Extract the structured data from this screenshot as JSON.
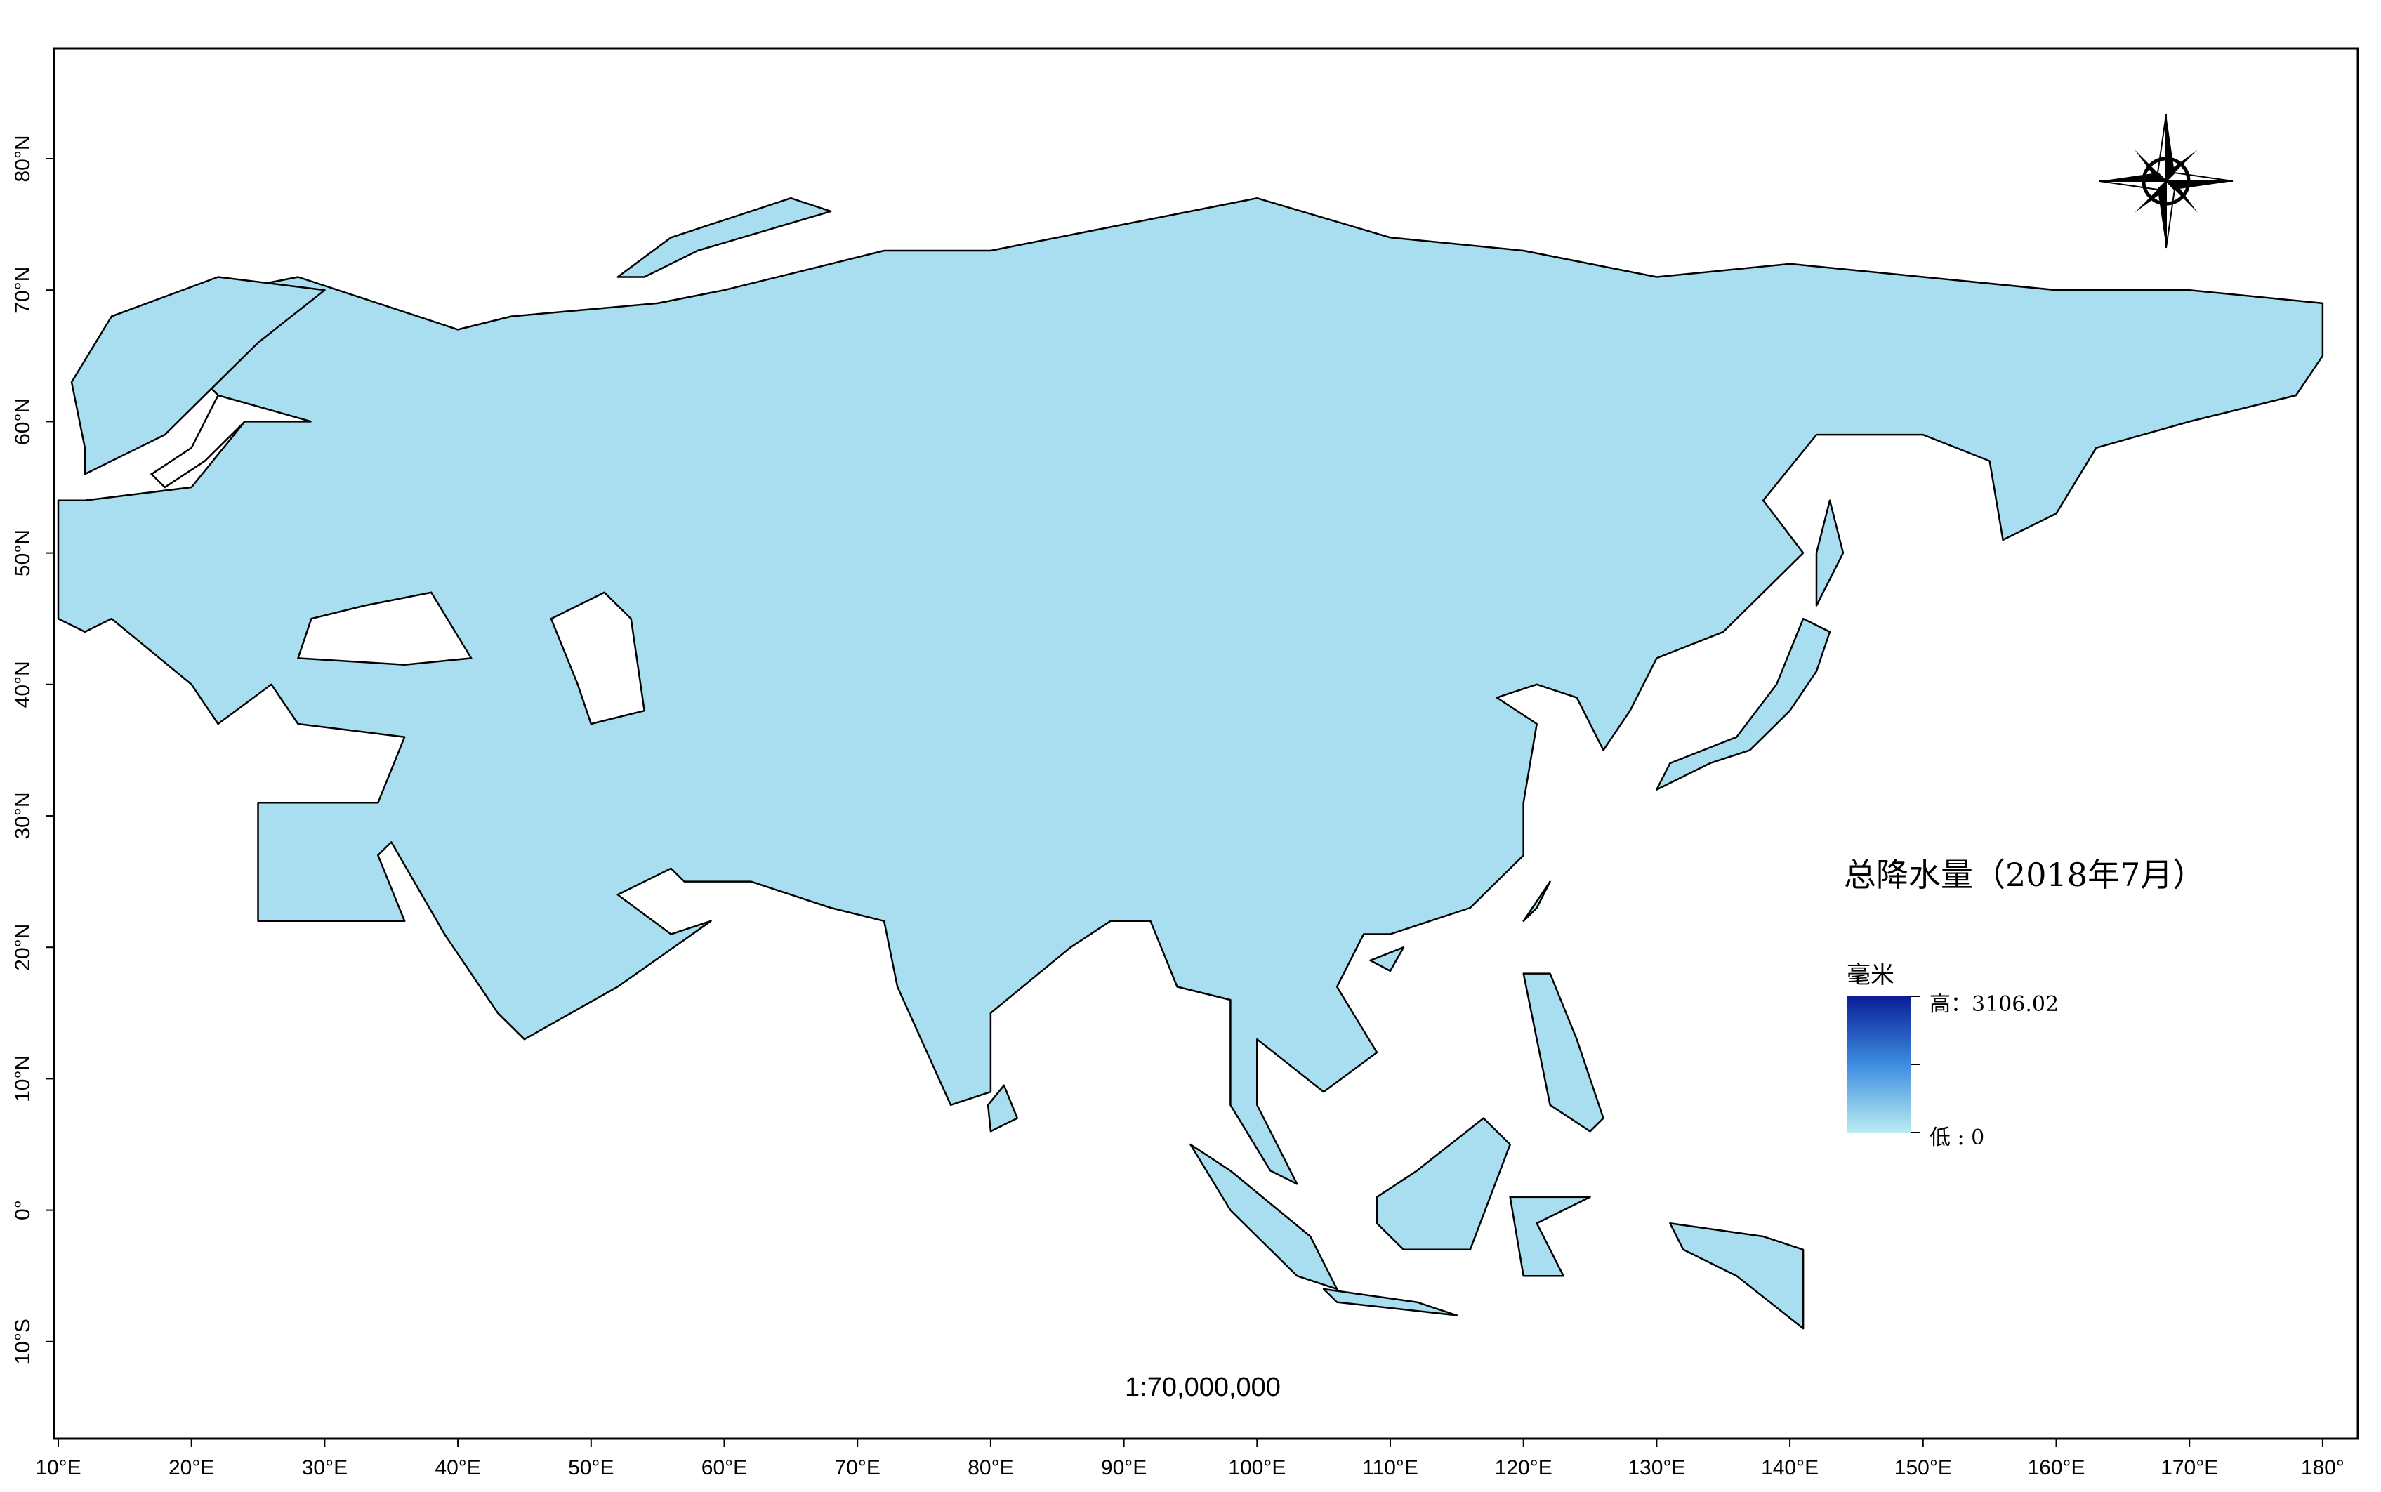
{
  "map": {
    "title": "总降水量（2018年7月）",
    "scale": "1:70,000,000",
    "legend": {
      "title": "毫米",
      "high": "高：3106.02",
      "low": "低 : 0"
    },
    "xticks": [
      {
        "value": 10,
        "label": "10°E"
      },
      {
        "value": 20,
        "label": "20°E"
      },
      {
        "value": 30,
        "label": "30°E"
      },
      {
        "value": 40,
        "label": "40°E"
      },
      {
        "value": 50,
        "label": "50°E"
      },
      {
        "value": 60,
        "label": "60°E"
      },
      {
        "value": 70,
        "label": "70°E"
      },
      {
        "value": 80,
        "label": "80°E"
      },
      {
        "value": 90,
        "label": "90°E"
      },
      {
        "value": 100,
        "label": "100°E"
      },
      {
        "value": 110,
        "label": "110°E"
      },
      {
        "value": 120,
        "label": "120°E"
      },
      {
        "value": 130,
        "label": "130°E"
      },
      {
        "value": 140,
        "label": "140°E"
      },
      {
        "value": 150,
        "label": "150°E"
      },
      {
        "value": 160,
        "label": "160°E"
      },
      {
        "value": 170,
        "label": "170°E"
      },
      {
        "value": 180,
        "label": "180°"
      }
    ],
    "yticks": [
      {
        "value": 80,
        "label": "80°N"
      },
      {
        "value": 70,
        "label": "70°N"
      },
      {
        "value": 60,
        "label": "60°N"
      },
      {
        "value": 50,
        "label": "50°N"
      },
      {
        "value": 40,
        "label": "40°N"
      },
      {
        "value": 30,
        "label": "30°N"
      },
      {
        "value": 20,
        "label": "20°N"
      },
      {
        "value": 10,
        "label": "10°N"
      },
      {
        "value": 0,
        "label": "0°"
      },
      {
        "value": -10,
        "label": "10°S"
      }
    ]
  }
}
